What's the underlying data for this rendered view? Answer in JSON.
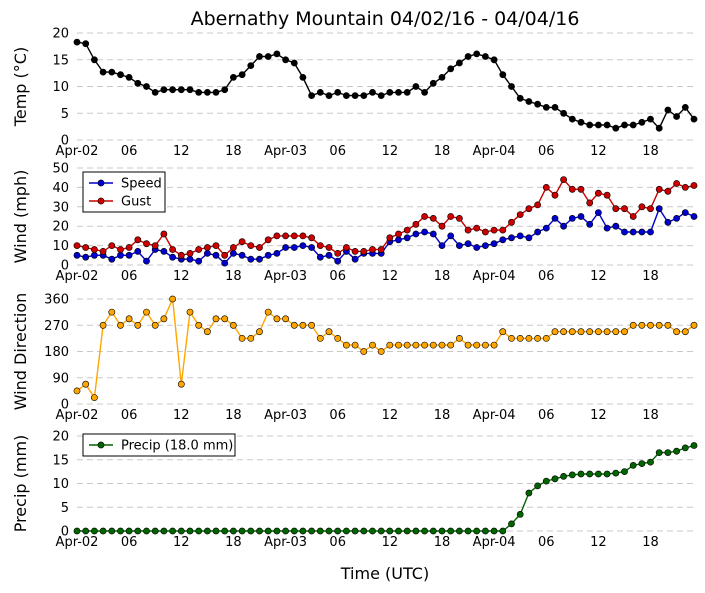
{
  "chart_data": {
    "title": "Abernathy Mountain 04/02/16 - 04/04/16",
    "xlabel": "Time (UTC)",
    "x_tick_labels": [
      "Apr-02",
      "06",
      "12",
      "18",
      "Apr-03",
      "06",
      "12",
      "18",
      "Apr-04",
      "06",
      "12",
      "18"
    ],
    "x_range_hours": [
      0,
      71
    ],
    "x_start_hour": 0,
    "x_step_hours": 1,
    "panels": [
      {
        "id": "temp",
        "type": "line",
        "ylabel": "Temp (°C)",
        "ylim": [
          0,
          20
        ],
        "yticks": [
          0,
          5,
          10,
          15,
          20
        ],
        "grid": true,
        "series": [
          {
            "name": "Temp",
            "color": "#000000",
            "values": [
              18.3,
              18.0,
              15.0,
              12.7,
              12.7,
              12.2,
              11.7,
              10.6,
              10.0,
              8.9,
              9.4,
              9.4,
              9.4,
              9.4,
              8.9,
              8.9,
              8.9,
              9.4,
              11.7,
              12.2,
              13.9,
              15.6,
              15.6,
              16.1,
              15.0,
              14.4,
              11.7,
              8.3,
              8.9,
              8.3,
              8.9,
              8.3,
              8.3,
              8.3,
              8.9,
              8.3,
              8.9,
              8.9,
              8.9,
              10.0,
              8.9,
              10.6,
              11.7,
              13.3,
              14.4,
              15.6,
              16.1,
              15.6,
              15.0,
              12.2,
              10.0,
              7.8,
              7.2,
              6.7,
              6.1,
              6.1,
              5.0,
              3.9,
              3.3,
              2.8,
              2.8,
              2.8,
              2.2,
              2.8,
              2.8,
              3.3,
              3.9,
              2.2,
              5.6,
              4.4,
              6.1,
              3.9
            ]
          }
        ]
      },
      {
        "id": "wind",
        "type": "line",
        "ylabel": "Wind (mph)",
        "ylim": [
          0,
          50
        ],
        "yticks": [
          0,
          10,
          20,
          30,
          40,
          50
        ],
        "grid": true,
        "legend": "top-left",
        "series": [
          {
            "name": "Speed",
            "color": "#0000cc",
            "values": [
              5,
              4,
              5,
              5,
              3,
              5,
              5,
              7,
              2,
              8,
              7,
              4,
              3,
              3,
              2,
              6,
              5,
              1,
              6,
              5,
              3,
              3,
              5,
              6,
              9,
              9,
              10,
              9,
              4,
              5,
              2,
              7,
              3,
              6,
              6,
              6,
              12,
              13,
              14,
              16,
              17,
              16,
              10,
              15,
              10,
              11,
              9,
              10,
              11,
              13,
              14,
              15,
              14,
              17,
              19,
              24,
              20,
              24,
              25,
              21,
              27,
              19,
              20,
              17,
              17,
              17,
              17,
              29,
              22,
              24,
              27,
              25
            ]
          },
          {
            "name": "Gust",
            "color": "#cc0000",
            "values": [
              10,
              9,
              8,
              7,
              10,
              8,
              9,
              13,
              11,
              10,
              16,
              8,
              5,
              6,
              8,
              9,
              10,
              5,
              9,
              12,
              10,
              9,
              13,
              15,
              15,
              15,
              15,
              14,
              10,
              9,
              6,
              9,
              7,
              7,
              8,
              8,
              14,
              16,
              18,
              21,
              25,
              24,
              20,
              25,
              24,
              18,
              19,
              17,
              18,
              18,
              22,
              26,
              29,
              31,
              40,
              36,
              44,
              39,
              39,
              32,
              37,
              36,
              29,
              29,
              25,
              30,
              29,
              39,
              38,
              42,
              40,
              41
            ]
          }
        ]
      },
      {
        "id": "direction",
        "type": "line",
        "ylabel": "Wind Direction",
        "ylim": [
          0,
          360
        ],
        "yticks": [
          0,
          90,
          180,
          270,
          360
        ],
        "grid": true,
        "series": [
          {
            "name": "Direction",
            "color": "#ffa500",
            "values": [
              45,
              68,
              22,
              270,
              315,
              270,
              292,
              270,
              315,
              270,
              292,
              360,
              68,
              315,
              270,
              248,
              292,
              292,
              270,
              225,
              225,
              248,
              315,
              292,
              292,
              270,
              270,
              270,
              225,
              248,
              225,
              202,
              202,
              180,
              202,
              180,
              202,
              202,
              202,
              202,
              202,
              202,
              202,
              202,
              225,
              202,
              202,
              202,
              202,
              248,
              225,
              225,
              225,
              225,
              225,
              248,
              248,
              248,
              248,
              248,
              248,
              248,
              248,
              248,
              270,
              270,
              270,
              270,
              270,
              248,
              248,
              270
            ]
          }
        ]
      },
      {
        "id": "precip",
        "type": "line",
        "ylabel": "Precip (mm)",
        "ylim": [
          0,
          20
        ],
        "yticks": [
          0,
          5,
          10,
          15,
          20
        ],
        "grid": true,
        "legend": "top-left",
        "series": [
          {
            "name": "Precip (18.0 mm)",
            "color": "#006400",
            "values": [
              0,
              0,
              0,
              0,
              0,
              0,
              0,
              0,
              0,
              0,
              0,
              0,
              0,
              0,
              0,
              0,
              0,
              0,
              0,
              0,
              0,
              0,
              0,
              0,
              0,
              0,
              0,
              0,
              0,
              0,
              0,
              0,
              0,
              0,
              0,
              0,
              0,
              0,
              0,
              0,
              0,
              0,
              0,
              0,
              0,
              0,
              0,
              0,
              0,
              0,
              1.5,
              3.5,
              8.0,
              9.5,
              10.5,
              11.0,
              11.5,
              11.8,
              12.0,
              12.0,
              12.0,
              12.0,
              12.2,
              12.5,
              13.8,
              14.2,
              14.5,
              16.5,
              16.5,
              16.8,
              17.5,
              18.0
            ]
          }
        ]
      }
    ]
  }
}
